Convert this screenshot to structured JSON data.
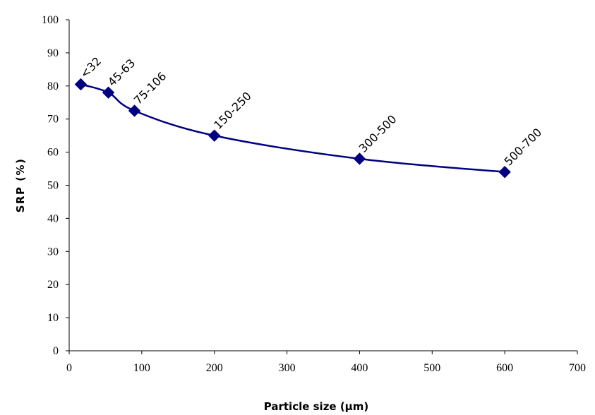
{
  "chart_data": {
    "type": "line",
    "title": "",
    "xlabel": "Particle size (µm)",
    "ylabel": "SRP (%)",
    "xlim": [
      0,
      700
    ],
    "ylim": [
      0,
      100
    ],
    "x_ticks": [
      0,
      100,
      200,
      300,
      400,
      500,
      600,
      700
    ],
    "y_ticks": [
      0,
      10,
      20,
      30,
      40,
      50,
      60,
      70,
      80,
      90,
      100
    ],
    "grid": false,
    "legend": "none",
    "colors": {
      "series": "#000080",
      "axis": "#000000"
    },
    "series": [
      {
        "x": [
          16,
          54,
          90,
          200,
          400,
          600
        ],
        "y": [
          80.5,
          78,
          72.5,
          65,
          58,
          54
        ],
        "labels": [
          "<32",
          "45-63",
          "75-106",
          "150-250",
          "300-500",
          "500-700"
        ],
        "marker": "diamond",
        "smooth": true
      }
    ]
  }
}
